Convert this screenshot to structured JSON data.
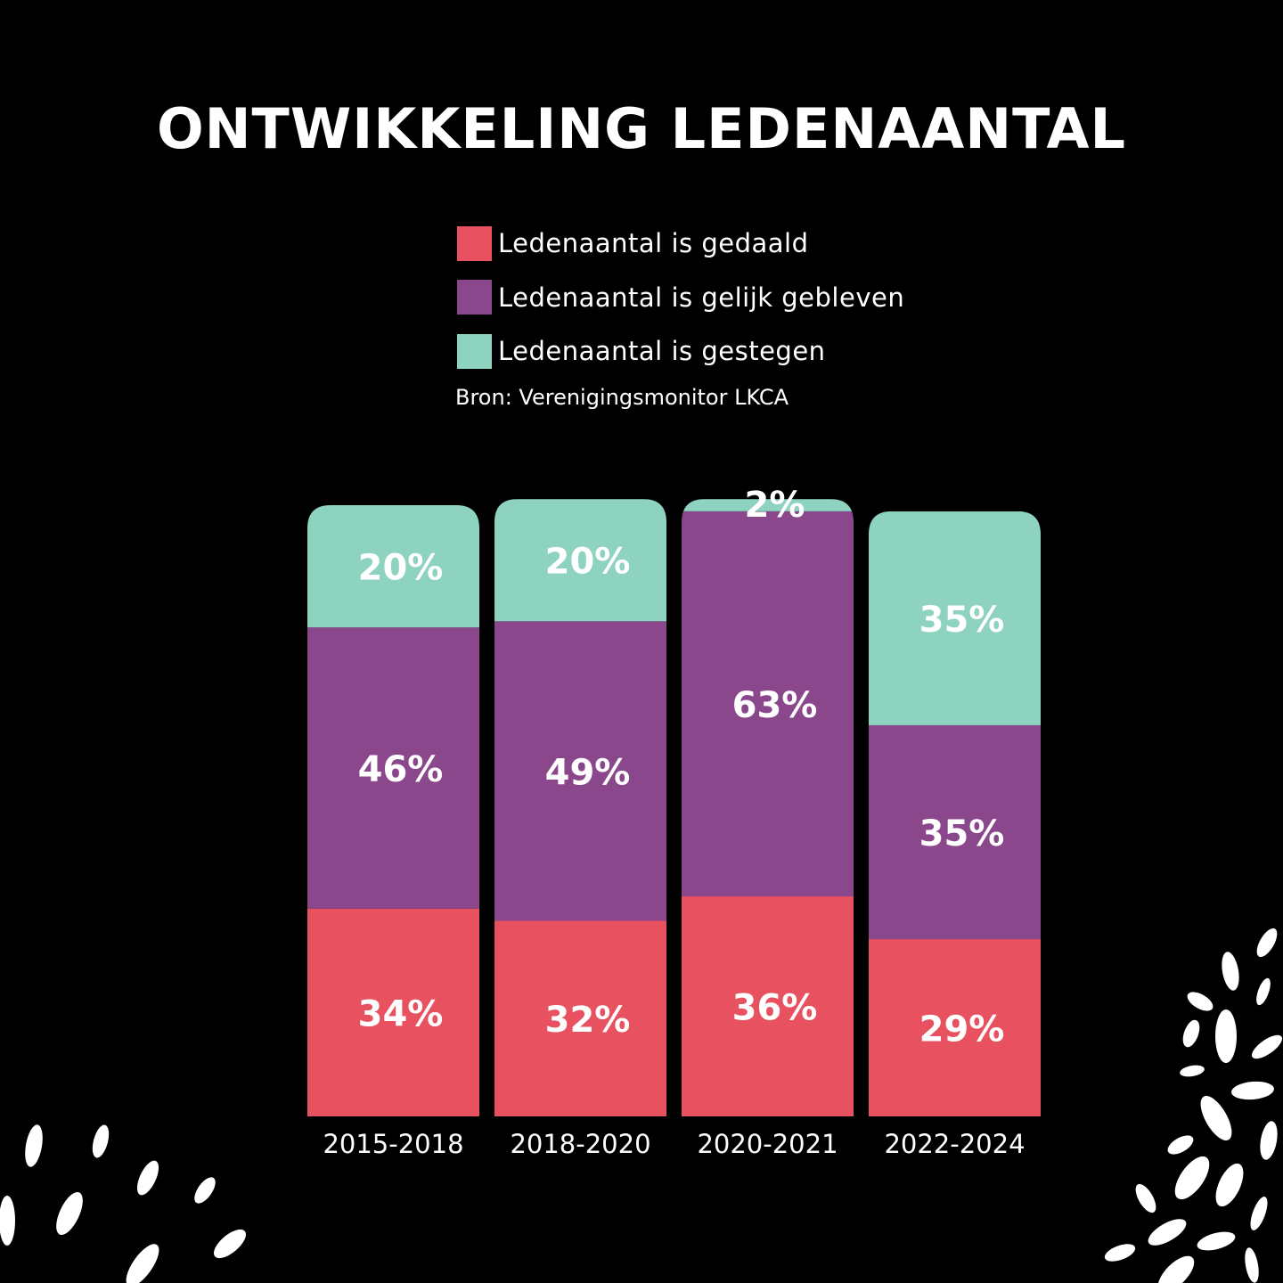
{
  "chart_data": {
    "type": "bar",
    "stacked": true,
    "title": "ONTWIKKELING LEDENAANTAL",
    "source": "Bron: Verenigingsmonitor LKCA",
    "categories": [
      "2015-2018",
      "2018-2020",
      "2020-2021",
      "2022-2024"
    ],
    "series": [
      {
        "name": "Ledenaantal is gedaald",
        "color": "#E8515F",
        "values": [
          34,
          32,
          36,
          29
        ],
        "labels": [
          "34%",
          "32%",
          "36%",
          "29%"
        ]
      },
      {
        "name": "Ledenaantal is gelijk gebleven",
        "color": "#8B478B",
        "values": [
          46,
          49,
          63,
          35
        ],
        "labels": [
          "46%",
          "49%",
          "63%",
          "35%"
        ]
      },
      {
        "name": "Ledenaantal is gestegen",
        "color": "#8ED2C0",
        "values": [
          20,
          20,
          2,
          35
        ],
        "labels": [
          "20%",
          "20%",
          "2%",
          "35%"
        ]
      }
    ],
    "xlabel": "",
    "ylabel": "",
    "ylim": [
      0,
      101
    ],
    "grid": false,
    "legend_position": "top-center"
  }
}
